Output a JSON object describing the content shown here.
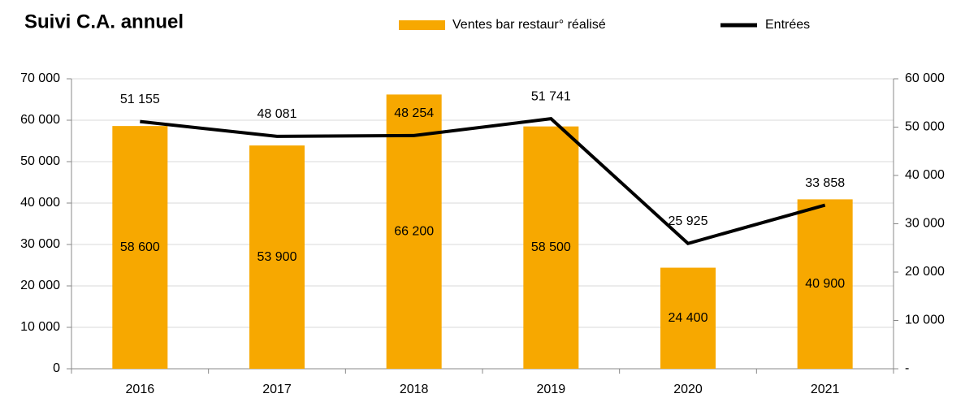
{
  "chart_data": {
    "type": "combo",
    "title": "Suivi C.A. annuel",
    "categories": [
      "2016",
      "2017",
      "2018",
      "2019",
      "2020",
      "2021"
    ],
    "series": [
      {
        "name": "Ventes bar restaur° réalisé",
        "type": "bar",
        "color": "#f7a800",
        "values": [
          58600,
          53900,
          66200,
          58500,
          24400,
          40900
        ],
        "value_labels": [
          "58 600",
          "53 900",
          "66 200",
          "58 500",
          "24 400",
          "40 900"
        ]
      },
      {
        "name": "Entrées",
        "type": "line",
        "axis": "y2",
        "color": "#000000",
        "values": [
          51155,
          48081,
          48254,
          51741,
          25925,
          33858
        ],
        "value_labels": [
          "51 155",
          "48 081",
          "48 254",
          "51 741",
          "25 925",
          "33 858"
        ]
      }
    ],
    "ylim": [
      0,
      70000
    ],
    "yticks": [
      0,
      {
        "value": 10000,
        "label": "10 000"
      },
      {
        "value": 20000,
        "label": "20 000"
      },
      {
        "value": 30000,
        "label": "30 000"
      },
      {
        "value": 40000,
        "label": "40 000"
      },
      {
        "value": 50000,
        "label": "50 000"
      },
      {
        "value": 60000,
        "label": "60 000"
      },
      {
        "value": 70000,
        "label": "70 000"
      }
    ],
    "y2lim": [
      0,
      60000
    ],
    "y2ticks": [
      {
        "value": 0,
        "label": "-"
      },
      {
        "value": 10000,
        "label": "10 000"
      },
      {
        "value": 20000,
        "label": "20 000"
      },
      {
        "value": 30000,
        "label": "30 000"
      },
      {
        "value": 40000,
        "label": "40 000"
      },
      {
        "value": 50000,
        "label": "50 000"
      },
      {
        "value": 60000,
        "label": "60 000"
      }
    ],
    "grid": true,
    "legend": "top"
  }
}
